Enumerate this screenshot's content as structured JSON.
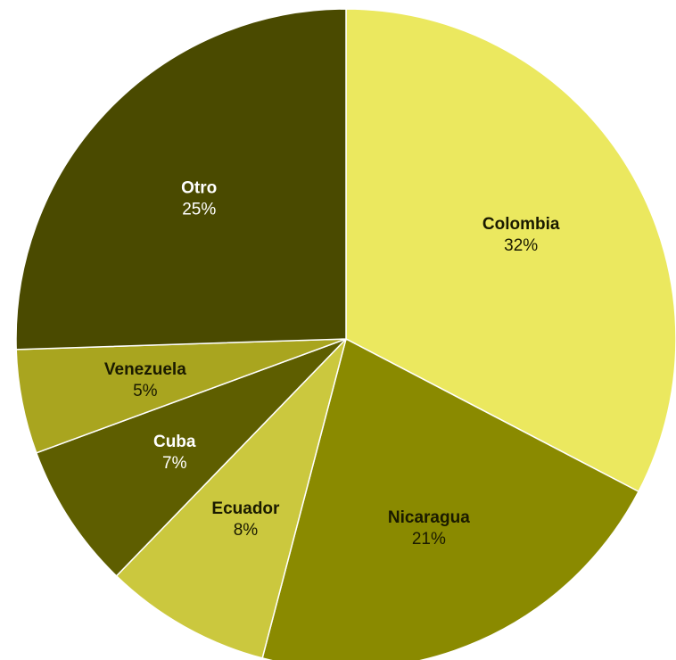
{
  "chart_data": {
    "type": "pie",
    "title": "",
    "slices": [
      {
        "label": "Colombia",
        "value": 32,
        "display": "32%",
        "color": "#ebe85f",
        "text_color": "#1a1a00"
      },
      {
        "label": "Nicaragua",
        "value": 21,
        "display": "21%",
        "color": "#8a8a00",
        "text_color": "#1a1a00"
      },
      {
        "label": "Ecuador",
        "value": 8,
        "display": "8%",
        "color": "#cbc83e",
        "text_color": "#1a1a00"
      },
      {
        "label": "Cuba",
        "value": 7,
        "display": "7%",
        "color": "#5e5e00",
        "text_color": "#ffffff"
      },
      {
        "label": "Venezuela",
        "value": 5,
        "display": "5%",
        "color": "#a9a51f",
        "text_color": "#1a1a00"
      },
      {
        "label": "Otro",
        "value": 25,
        "display": "25%",
        "color": "#4a4a00",
        "text_color": "#ffffff"
      }
    ],
    "start_angle_deg": 0,
    "direction": "clockwise",
    "legend": "none"
  }
}
